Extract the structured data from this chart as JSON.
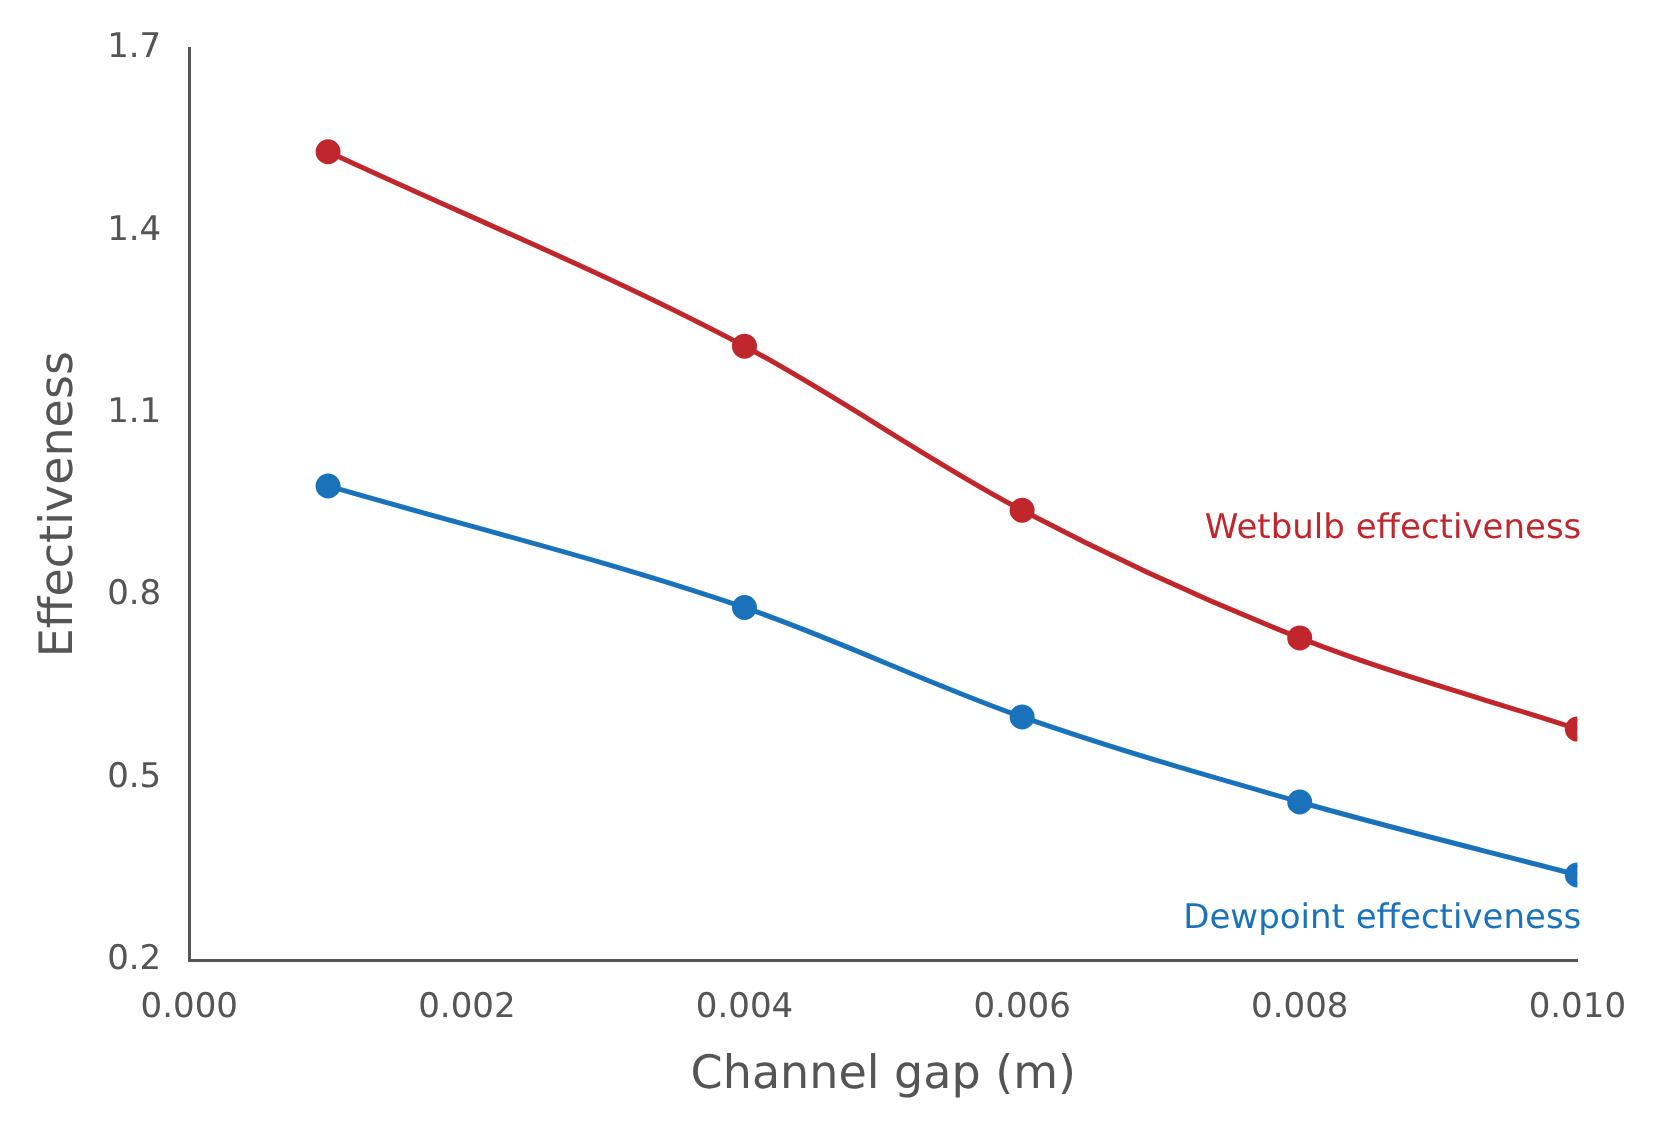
{
  "chart_data": {
    "type": "line",
    "xlabel": "Channel gap (m)",
    "ylabel": "Effectiveness",
    "x": [
      0.001,
      0.004,
      0.006,
      0.008,
      0.01
    ],
    "series": [
      {
        "name": "Wetbulb effectiveness",
        "color": "#c0272d",
        "values": [
          1.53,
          1.21,
          0.94,
          0.73,
          0.58
        ]
      },
      {
        "name": "Dewpoint effectiveness",
        "color": "#1a72bb",
        "values": [
          0.98,
          0.78,
          0.6,
          0.46,
          0.34
        ]
      }
    ],
    "xlim": [
      0,
      0.01
    ],
    "xticks": [
      {
        "value": 0,
        "label": "0.000"
      },
      {
        "value": 0.002,
        "label": "0.002"
      },
      {
        "value": 0.004,
        "label": "0.004"
      },
      {
        "value": 0.006,
        "label": "0.006"
      },
      {
        "value": 0.008,
        "label": "0.008"
      },
      {
        "value": 0.01,
        "label": "0.010"
      }
    ],
    "ylim": [
      0.2,
      1.7
    ],
    "yticks": [
      0.2,
      0.5,
      0.8,
      1.1,
      1.4,
      1.7
    ],
    "grid": false,
    "legend": false,
    "marker": "circle",
    "line_style": "solid"
  }
}
